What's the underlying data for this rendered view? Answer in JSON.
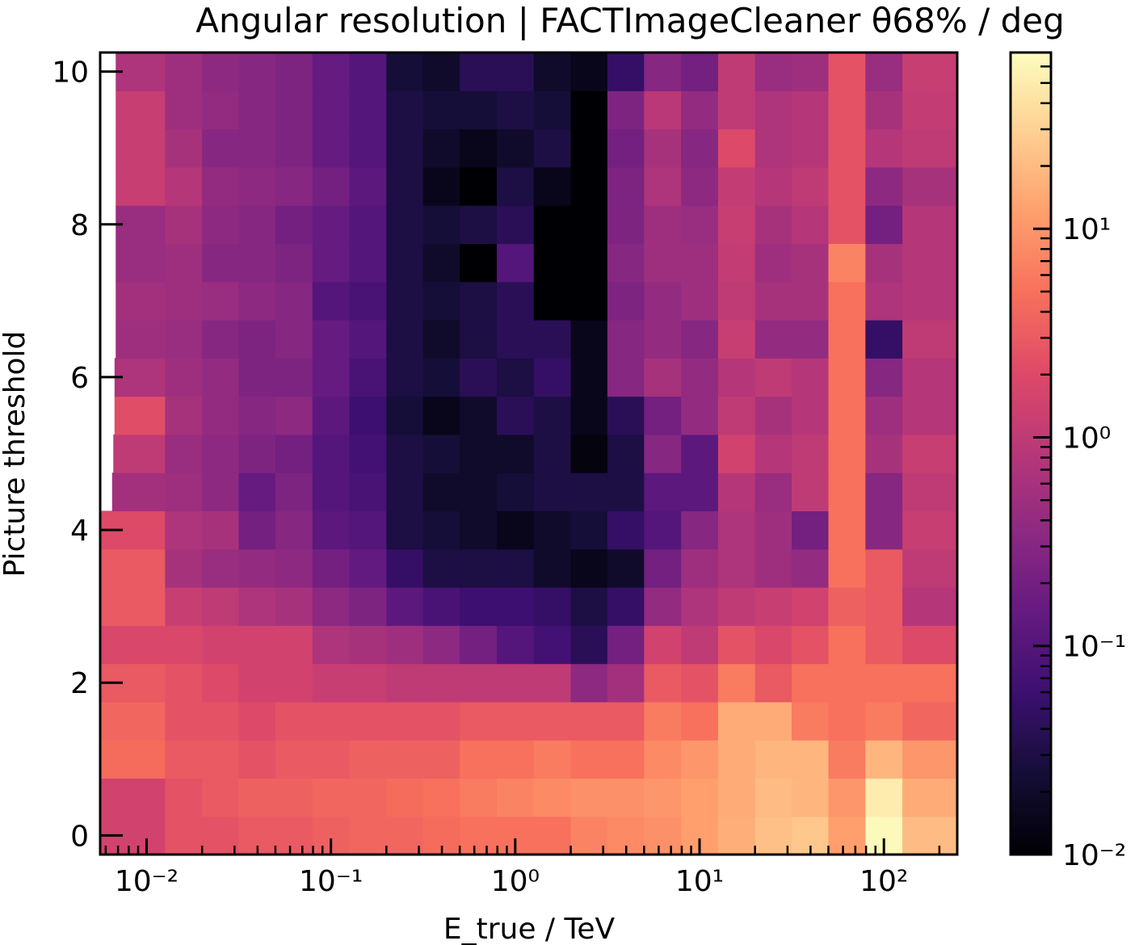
{
  "chart_data": {
    "type": "heatmap",
    "title": "Angular resolution | FACTImageCleaner θ68% / deg",
    "xlabel": "E_true / TeV",
    "ylabel": "Picture threshold",
    "x_scale": "log",
    "x_range": [
      0.0056,
      250
    ],
    "y_range": [
      -0.25,
      10.25
    ],
    "x_ticks": [
      {
        "value": 0.01,
        "label": "10⁻²"
      },
      {
        "value": 0.1,
        "label": "10⁻¹"
      },
      {
        "value": 1,
        "label": "10⁰"
      },
      {
        "value": 10,
        "label": "10¹"
      },
      {
        "value": 100,
        "label": "10²"
      }
    ],
    "y_ticks": [
      {
        "value": 0,
        "label": "0"
      },
      {
        "value": 2,
        "label": "2"
      },
      {
        "value": 4,
        "label": "4"
      },
      {
        "value": 6,
        "label": "6"
      },
      {
        "value": 8,
        "label": "8"
      },
      {
        "value": 10,
        "label": "10"
      }
    ],
    "colorbar": {
      "scale": "log",
      "range": [
        0.01,
        70
      ],
      "colormap": "magma",
      "ticks": [
        {
          "value": 0.01,
          "label": "10⁻²"
        },
        {
          "value": 0.1,
          "label": "10⁻¹"
        },
        {
          "value": 1,
          "label": "10⁰"
        },
        {
          "value": 10,
          "label": "10¹"
        }
      ]
    },
    "y_levels": [
      0,
      0.5,
      1,
      1.5,
      2,
      2.5,
      3,
      3.5,
      4,
      4.5,
      5,
      5.5,
      6,
      6.5,
      7,
      7.5,
      8,
      8.5,
      9,
      9.5,
      10
    ],
    "x_bin_edges": [
      0.0056,
      0.0126,
      0.02,
      0.0316,
      0.05,
      0.0794,
      0.126,
      0.2,
      0.316,
      0.5,
      0.794,
      1.26,
      2,
      3.16,
      5,
      7.94,
      12.6,
      20,
      31.6,
      50,
      79.4,
      126,
      250
    ],
    "row_left_edges": [
      0.0056,
      0.0056,
      0.0056,
      0.0056,
      0.0056,
      0.0056,
      0.0056,
      0.0056,
      0.0056,
      0.0065,
      0.0066,
      0.0067,
      0.0067,
      0.0068,
      0.0068,
      0.0068,
      0.0068,
      0.0068,
      0.0068,
      0.0068,
      0.0068
    ],
    "values": [
      [
        1.5,
        2.5,
        2.5,
        3.0,
        3.0,
        3.5,
        4.0,
        4.0,
        4.5,
        5.0,
        5.0,
        5.0,
        7.0,
        8.0,
        9.0,
        12,
        16,
        22,
        25,
        12,
        65,
        20
      ],
      [
        1.5,
        2.5,
        3.0,
        3.5,
        3.5,
        4.0,
        4.0,
        4.5,
        5.0,
        6.0,
        7.0,
        8.0,
        9.0,
        9.0,
        10,
        12,
        15,
        20,
        18,
        10,
        50,
        15
      ],
      [
        4.5,
        3.0,
        3.0,
        2.5,
        3.0,
        3.0,
        3.5,
        3.5,
        3.5,
        5.0,
        5.0,
        6.0,
        5.0,
        5.0,
        8.0,
        10,
        15,
        18,
        18,
        6.0,
        18,
        10
      ],
      [
        4.0,
        2.5,
        2.5,
        2.0,
        2.5,
        2.5,
        2.5,
        2.5,
        2.5,
        3.0,
        3.0,
        3.0,
        3.0,
        3.0,
        6.0,
        5.0,
        15,
        15,
        6.0,
        5.0,
        6.0,
        4.0
      ],
      [
        3.0,
        2.5,
        2.0,
        1.5,
        1.5,
        1.2,
        1.2,
        1.0,
        1.0,
        1.0,
        1.0,
        1.0,
        0.35,
        0.55,
        3.0,
        2.5,
        6.0,
        3.0,
        5.0,
        5.0,
        5.0,
        5.0
      ],
      [
        1.8,
        1.8,
        1.5,
        1.5,
        1.5,
        0.7,
        0.6,
        0.5,
        0.35,
        0.2,
        0.1,
        0.07,
        0.04,
        0.2,
        1.5,
        1.0,
        2.5,
        1.8,
        2.5,
        5.0,
        3.0,
        2.0
      ],
      [
        3.0,
        1.2,
        1.0,
        0.7,
        0.6,
        0.35,
        0.25,
        0.12,
        0.08,
        0.06,
        0.06,
        0.05,
        0.03,
        0.05,
        0.4,
        0.7,
        1.0,
        1.2,
        1.5,
        3.5,
        3.0,
        0.8
      ],
      [
        3.0,
        0.6,
        0.45,
        0.4,
        0.35,
        0.2,
        0.14,
        0.05,
        0.03,
        0.03,
        0.03,
        0.02,
        0.015,
        0.02,
        0.2,
        0.5,
        0.7,
        0.5,
        0.4,
        5.0,
        3.0,
        1.0
      ],
      [
        2.0,
        0.7,
        0.6,
        0.2,
        0.3,
        0.12,
        0.1,
        0.03,
        0.025,
        0.02,
        0.015,
        0.02,
        0.025,
        0.05,
        0.1,
        0.3,
        0.7,
        0.5,
        0.2,
        5.0,
        0.3,
        1.2
      ],
      [
        0.55,
        0.5,
        0.35,
        0.15,
        0.25,
        0.1,
        0.08,
        0.03,
        0.02,
        0.02,
        0.025,
        0.03,
        0.03,
        0.03,
        0.12,
        0.12,
        0.8,
        0.45,
        1.0,
        5.0,
        0.3,
        1.0
      ],
      [
        1.0,
        0.45,
        0.35,
        0.25,
        0.2,
        0.1,
        0.07,
        0.03,
        0.025,
        0.02,
        0.02,
        0.03,
        0.012,
        0.03,
        0.3,
        0.12,
        1.5,
        0.8,
        1.0,
        5.0,
        0.6,
        1.2
      ],
      [
        2.2,
        0.6,
        0.4,
        0.3,
        0.35,
        0.12,
        0.06,
        0.025,
        0.015,
        0.02,
        0.04,
        0.03,
        0.015,
        0.04,
        0.2,
        0.4,
        1.0,
        0.6,
        0.8,
        5.0,
        0.5,
        0.8
      ],
      [
        0.7,
        0.5,
        0.4,
        0.25,
        0.25,
        0.15,
        0.08,
        0.03,
        0.025,
        0.04,
        0.03,
        0.05,
        0.015,
        0.3,
        0.6,
        0.4,
        0.8,
        1.0,
        0.8,
        5.0,
        0.3,
        0.8
      ],
      [
        0.5,
        0.45,
        0.3,
        0.25,
        0.3,
        0.15,
        0.1,
        0.03,
        0.02,
        0.03,
        0.04,
        0.04,
        0.015,
        0.3,
        0.4,
        0.3,
        1.2,
        0.4,
        0.4,
        5.0,
        0.05,
        1.0
      ],
      [
        0.55,
        0.5,
        0.45,
        0.35,
        0.3,
        0.1,
        0.08,
        0.03,
        0.025,
        0.03,
        0.04,
        0.01,
        0.01,
        0.25,
        0.4,
        0.5,
        1.0,
        0.6,
        0.6,
        5.0,
        0.7,
        0.8
      ],
      [
        0.45,
        0.5,
        0.3,
        0.3,
        0.25,
        0.15,
        0.1,
        0.03,
        0.02,
        0.01,
        0.1,
        0.01,
        0.01,
        0.3,
        0.5,
        0.5,
        1.1,
        0.5,
        0.6,
        7.0,
        0.6,
        0.8
      ],
      [
        0.45,
        0.6,
        0.35,
        0.3,
        0.2,
        0.15,
        0.1,
        0.03,
        0.025,
        0.03,
        0.04,
        0.01,
        0.01,
        0.25,
        0.5,
        0.45,
        1.2,
        0.6,
        0.8,
        2.5,
        0.2,
        0.8
      ],
      [
        1.2,
        0.8,
        0.4,
        0.35,
        0.3,
        0.2,
        0.12,
        0.03,
        0.015,
        0.01,
        0.03,
        0.015,
        0.01,
        0.25,
        0.7,
        0.35,
        1.1,
        0.8,
        1.0,
        2.5,
        0.35,
        0.6
      ],
      [
        1.2,
        0.6,
        0.3,
        0.3,
        0.25,
        0.15,
        0.1,
        0.03,
        0.02,
        0.015,
        0.02,
        0.03,
        0.01,
        0.2,
        0.6,
        0.3,
        2.0,
        0.7,
        0.8,
        2.5,
        0.8,
        1.0
      ],
      [
        1.2,
        0.5,
        0.4,
        0.3,
        0.25,
        0.15,
        0.1,
        0.03,
        0.025,
        0.025,
        0.03,
        0.025,
        0.01,
        0.25,
        0.9,
        0.4,
        1.0,
        0.7,
        0.8,
        2.5,
        0.6,
        1.1
      ],
      [
        0.7,
        0.5,
        0.35,
        0.3,
        0.25,
        0.15,
        0.1,
        0.025,
        0.02,
        0.04,
        0.04,
        0.02,
        0.015,
        0.05,
        0.3,
        0.2,
        1.0,
        0.45,
        0.5,
        2.5,
        0.45,
        1.2
      ]
    ]
  }
}
